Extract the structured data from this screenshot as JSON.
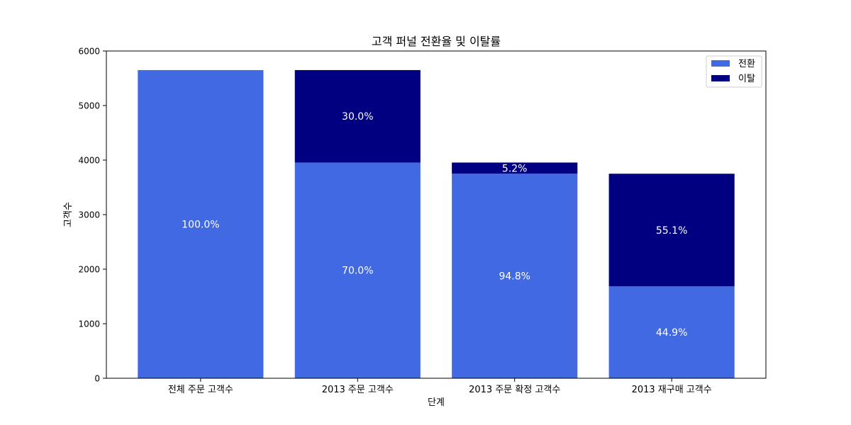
{
  "chart_data": {
    "type": "bar",
    "title": "고객 퍼널 전환율 및 이탈률",
    "xlabel": "단계",
    "ylabel": "고객수",
    "ylim": [
      0,
      6000
    ],
    "yticks": [
      0,
      1000,
      2000,
      3000,
      4000,
      5000,
      6000
    ],
    "categories": [
      "전체 주문 고객수",
      "2013 주문 고객수",
      "2013 주문 확정 고객수",
      "2013 재구매 고객수"
    ],
    "stacked": true,
    "grid": false,
    "legend_position": "top-right",
    "series": [
      {
        "name": "전환",
        "color": "#4169E1",
        "values": [
          5650,
          3955,
          3750,
          1685
        ],
        "labels": [
          "100.0%",
          "70.0%",
          "94.8%",
          "44.9%"
        ]
      },
      {
        "name": "이탈",
        "color": "#000080",
        "values": [
          0,
          1695,
          205,
          2065
        ],
        "labels": [
          "",
          "30.0%",
          "5.2%",
          "55.1%"
        ]
      }
    ]
  }
}
